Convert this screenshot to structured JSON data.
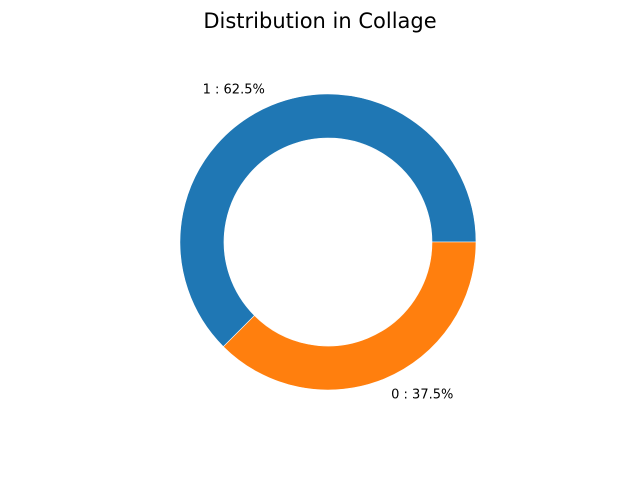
{
  "chart_data": {
    "type": "pie",
    "style": "donut",
    "title": "Distribution in Collage",
    "categories": [
      "1",
      "0"
    ],
    "values": [
      62.5,
      37.5
    ],
    "labels": [
      "1 : 62.5%",
      "0 : 37.5%"
    ],
    "colors": [
      "#1f77b4",
      "#ff7f0e"
    ],
    "start_angle_deg": 0,
    "direction": "counterclockwise",
    "legend": "none",
    "grid": false
  }
}
